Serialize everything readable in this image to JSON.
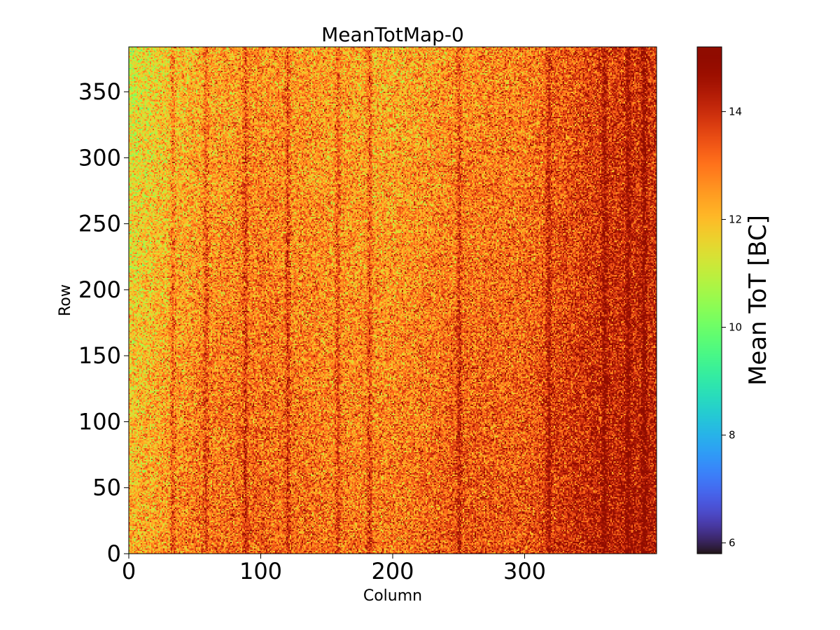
{
  "chart_data": {
    "type": "heatmap",
    "title": "MeanTotMap-0",
    "xlabel": "Column",
    "ylabel": "Row",
    "colorbar_label": "Mean ToT [BC]",
    "colormap": "turbo",
    "n_columns": 400,
    "n_rows": 384,
    "xlim": [
      0,
      400
    ],
    "ylim": [
      0,
      384
    ],
    "x_ticks": [
      0,
      100,
      200,
      300
    ],
    "x_tick_labels": [
      "0",
      "100",
      "200",
      "300"
    ],
    "y_ticks": [
      0,
      50,
      100,
      150,
      200,
      250,
      300,
      350
    ],
    "y_tick_labels": [
      "0",
      "50",
      "100",
      "150",
      "200",
      "250",
      "300",
      "350"
    ],
    "color_range": [
      5.8,
      15.2
    ],
    "colorbar_ticks": [
      6,
      8,
      10,
      12,
      14
    ],
    "colorbar_tick_labels": [
      "6",
      "8",
      "10",
      "12",
      "14"
    ],
    "value_profile": {
      "columns": [
        0,
        50,
        100,
        150,
        200,
        250,
        300,
        350,
        400
      ],
      "mean_value_bottom_rows": [
        12.2,
        13.0,
        13.3,
        13.0,
        13.0,
        13.5,
        13.5,
        14.3,
        14.5
      ],
      "mean_value_top_rows": [
        11.2,
        12.2,
        12.6,
        12.4,
        12.2,
        12.6,
        12.8,
        13.6,
        13.9
      ],
      "spread": 1.6
    },
    "dark_column_stripes": [
      33,
      58,
      88,
      120,
      158,
      182,
      250,
      318,
      360,
      378,
      390
    ]
  }
}
